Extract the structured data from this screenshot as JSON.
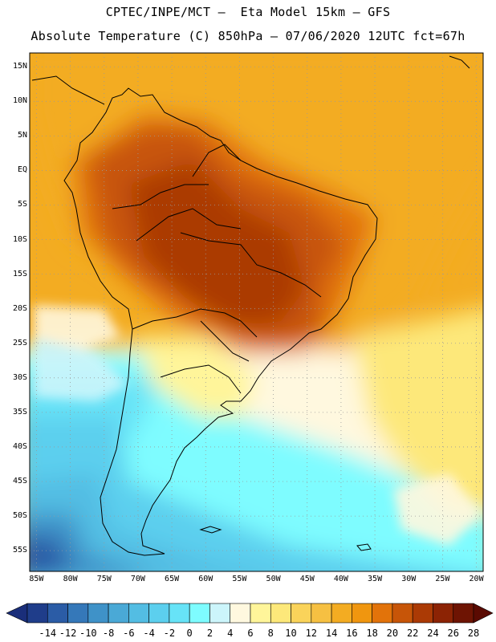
{
  "header": {
    "line1": "CPTEC/INPE/MCT –  Eta Model 15km – GFS",
    "line2": "Absolute Temperature (C) 850hPa – 07/06/2020 12UTC fct=67h"
  },
  "map": {
    "lat_labels": [
      "15N",
      "10N",
      "5N",
      "EQ",
      "5S",
      "10S",
      "15S",
      "20S",
      "25S",
      "30S",
      "35S",
      "40S",
      "45S",
      "50S",
      "55S"
    ],
    "lat_values": [
      15,
      10,
      5,
      0,
      -5,
      -10,
      -15,
      -20,
      -25,
      -30,
      -35,
      -40,
      -45,
      -50,
      -55
    ],
    "lon_labels": [
      "85W",
      "80W",
      "75W",
      "70W",
      "65W",
      "60W",
      "55W",
      "50W",
      "45W",
      "40W",
      "35W",
      "30W",
      "25W",
      "20W"
    ],
    "lon_values": [
      -85,
      -80,
      -75,
      -70,
      -65,
      -60,
      -55,
      -50,
      -45,
      -40,
      -35,
      -30,
      -25,
      -20
    ],
    "lat_range": [
      -58,
      17
    ],
    "lon_range": [
      -86,
      -19
    ]
  },
  "colorbar": {
    "labels": [
      "-14",
      "-12",
      "-10",
      "-8",
      "-6",
      "-4",
      "-2",
      "0",
      "2",
      "4",
      "6",
      "8",
      "10",
      "12",
      "14",
      "16",
      "18",
      "20",
      "22",
      "24",
      "26",
      "28"
    ],
    "colors": [
      "#1f3d8a",
      "#2b5ca6",
      "#3578b9",
      "#3f92c8",
      "#4aa9d6",
      "#53bde3",
      "#5ccfee",
      "#67e3f7",
      "#7efcff",
      "#ccf5fb",
      "#fff8df",
      "#fff59a",
      "#fde87a",
      "#fad35a",
      "#f6c042",
      "#f3ac22",
      "#f0960f",
      "#e2730a",
      "#c75508",
      "#ab3a05",
      "#8c2304",
      "#6e1403"
    ],
    "min_color": "#1a2e7a",
    "max_color": "#5a0a02"
  }
}
